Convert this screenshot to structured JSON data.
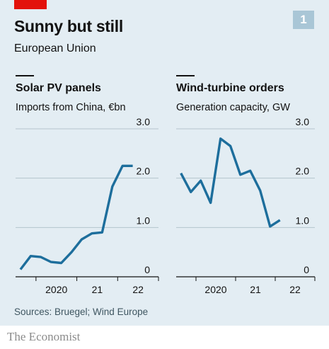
{
  "header": {
    "title": "Sunny but still",
    "subtitle": "European Union",
    "badge": "1"
  },
  "footer": {
    "source": "Sources: Bruegel; Wind Europe",
    "brand": "The Economist"
  },
  "colors": {
    "line": "#1d6e9c",
    "panel": "#e3edf3",
    "grid": "#b4c4ce",
    "accent_red": "#e3120b"
  },
  "chart_data": [
    {
      "type": "line",
      "title": "Solar PV panels",
      "subtitle": "Imports from China, €bn",
      "ylim": [
        0,
        3.0
      ],
      "y_ticks": [
        {
          "value": 0,
          "label": "0"
        },
        {
          "value": 1.0,
          "label": "1.0"
        },
        {
          "value": 2.0,
          "label": "2.0"
        },
        {
          "value": 3.0,
          "label": "3.0"
        }
      ],
      "xlim": [
        2019.5,
        2023.0
      ],
      "x_tick_marks": [
        2020,
        2021,
        2022,
        2023
      ],
      "x_labels": [
        {
          "value": 2020.0,
          "label": "2020"
        },
        {
          "value": 2021.0,
          "label": "21"
        },
        {
          "value": 2022.0,
          "label": "22"
        }
      ],
      "grid": true,
      "series": [
        {
          "x": [
            2019.62,
            2019.87,
            2020.12,
            2020.37,
            2020.62,
            2020.87,
            2021.12,
            2021.37,
            2021.62,
            2021.87,
            2022.12,
            2022.37
          ],
          "values": [
            0.15,
            0.42,
            0.4,
            0.3,
            0.28,
            0.5,
            0.76,
            0.88,
            0.9,
            1.83,
            2.25,
            2.25
          ]
        }
      ]
    },
    {
      "type": "line",
      "title": "Wind-turbine orders",
      "subtitle": "Generation capacity, GW",
      "ylim": [
        0,
        3.0
      ],
      "y_ticks": [
        {
          "value": 0,
          "label": "0"
        },
        {
          "value": 1.0,
          "label": "1.0"
        },
        {
          "value": 2.0,
          "label": "2.0"
        },
        {
          "value": 3.0,
          "label": "3.0"
        }
      ],
      "xlim": [
        2019.5,
        2023.0
      ],
      "x_tick_marks": [
        2020,
        2021,
        2022,
        2023
      ],
      "x_labels": [
        {
          "value": 2020.0,
          "label": "2020"
        },
        {
          "value": 2021.0,
          "label": "21"
        },
        {
          "value": 2022.0,
          "label": "22"
        }
      ],
      "grid": true,
      "series": [
        {
          "x": [
            2019.62,
            2019.87,
            2020.12,
            2020.37,
            2020.62,
            2020.87,
            2021.12,
            2021.37,
            2021.62,
            2021.87,
            2022.12
          ],
          "values": [
            2.1,
            1.72,
            1.95,
            1.5,
            2.8,
            2.65,
            2.07,
            2.15,
            1.75,
            1.02,
            1.15
          ]
        }
      ]
    }
  ]
}
